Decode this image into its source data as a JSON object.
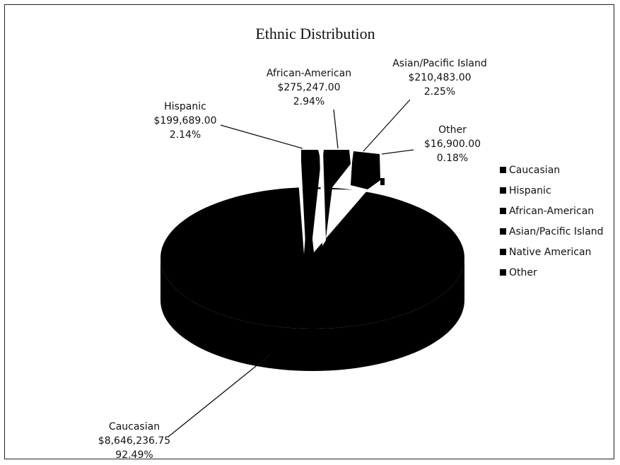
{
  "chart_data": {
    "type": "pie",
    "title": "Ethnic Distribution",
    "categories": [
      "Caucasian",
      "Hispanic",
      "African-American",
      "Asian/Pacific Island",
      "Native American",
      "Other"
    ],
    "values": [
      8646236.75,
      199689.0,
      275247.0,
      210483.0,
      null,
      16900.0
    ],
    "value_labels": [
      "$8,646,236.75",
      "$199,689.00",
      "$275,247.00",
      "$210,483.00",
      "",
      "$16,900.00"
    ],
    "percent_labels": [
      "92.49%",
      "2.14%",
      "2.94%",
      "2.25%",
      "",
      "0.18%"
    ],
    "legend": {
      "placement": "right",
      "entries": [
        "Caucasian",
        "Hispanic",
        "African-American",
        "Asian/Pacific Island",
        "Native American",
        "Other"
      ]
    },
    "colors": {
      "slice": "#000000",
      "background": "#ffffff"
    }
  }
}
